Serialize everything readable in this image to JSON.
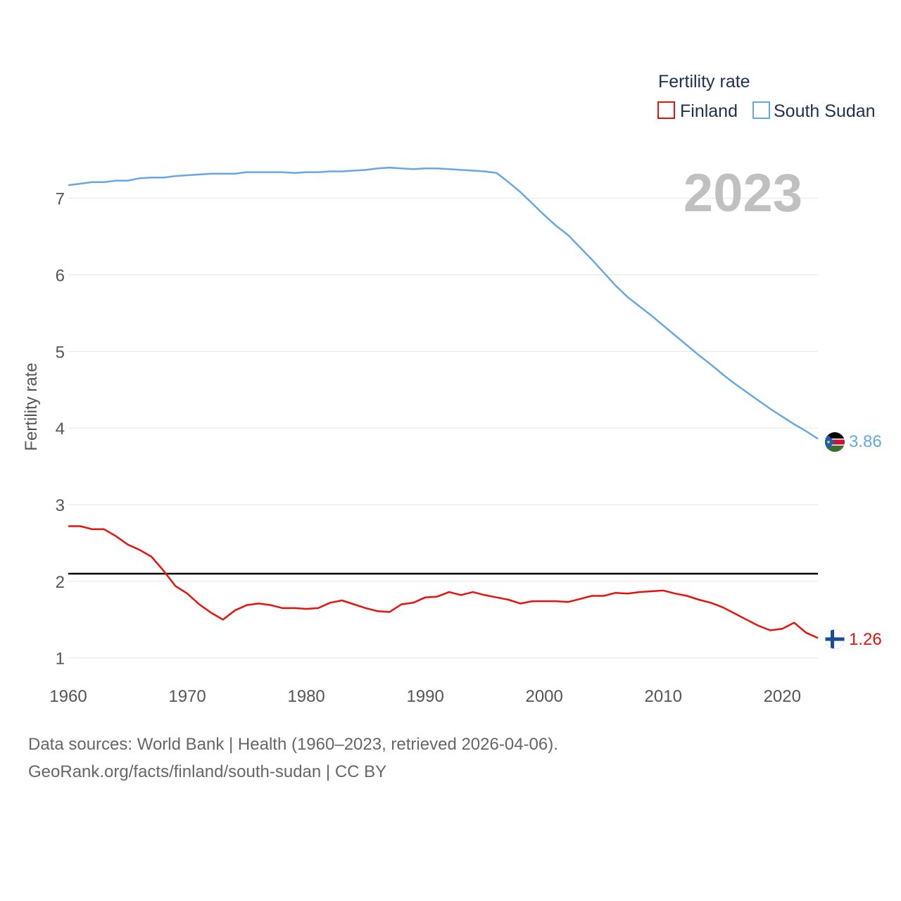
{
  "chart_data": {
    "type": "line",
    "title": "",
    "xlabel": "",
    "ylabel": "Fertility rate",
    "xlim": [
      1960,
      2023
    ],
    "ylim": [
      0.85,
      7.75
    ],
    "xticks": [
      1960,
      1970,
      1980,
      1990,
      2000,
      2010,
      2020
    ],
    "yticks": [
      1,
      2,
      3,
      4,
      5,
      6,
      7
    ],
    "reference_line": 2.1,
    "current_year": "2023",
    "legend": {
      "title": "Fertility rate",
      "position": "top-right"
    },
    "x": [
      1960,
      1961,
      1962,
      1963,
      1964,
      1965,
      1966,
      1967,
      1968,
      1969,
      1970,
      1971,
      1972,
      1973,
      1974,
      1975,
      1976,
      1977,
      1978,
      1979,
      1980,
      1981,
      1982,
      1983,
      1984,
      1985,
      1986,
      1987,
      1988,
      1989,
      1990,
      1991,
      1992,
      1993,
      1994,
      1995,
      1996,
      1997,
      1998,
      1999,
      2000,
      2001,
      2002,
      2003,
      2004,
      2005,
      2006,
      2007,
      2008,
      2009,
      2010,
      2011,
      2012,
      2013,
      2014,
      2015,
      2016,
      2017,
      2018,
      2019,
      2020,
      2021,
      2022,
      2023
    ],
    "series": [
      {
        "name": "Finland",
        "color": "#e8120c",
        "end_label": "1.26",
        "flag": "finland-flag-icon",
        "values": [
          2.72,
          2.72,
          2.68,
          2.68,
          2.59,
          2.48,
          2.41,
          2.32,
          2.14,
          1.94,
          1.84,
          1.7,
          1.59,
          1.5,
          1.62,
          1.69,
          1.71,
          1.69,
          1.65,
          1.65,
          1.64,
          1.65,
          1.72,
          1.75,
          1.7,
          1.65,
          1.61,
          1.6,
          1.7,
          1.72,
          1.79,
          1.8,
          1.86,
          1.82,
          1.86,
          1.82,
          1.79,
          1.76,
          1.71,
          1.74,
          1.74,
          1.74,
          1.73,
          1.77,
          1.81,
          1.81,
          1.85,
          1.84,
          1.86,
          1.87,
          1.88,
          1.84,
          1.81,
          1.76,
          1.72,
          1.66,
          1.58,
          1.5,
          1.42,
          1.36,
          1.38,
          1.46,
          1.33,
          1.26
        ]
      },
      {
        "name": "South Sudan",
        "color": "#65a8e6",
        "end_label": "3.86",
        "flag": "south-sudan-flag-icon",
        "values": [
          7.17,
          7.19,
          7.21,
          7.21,
          7.23,
          7.23,
          7.26,
          7.27,
          7.27,
          7.29,
          7.3,
          7.31,
          7.32,
          7.32,
          7.32,
          7.34,
          7.34,
          7.34,
          7.34,
          7.33,
          7.34,
          7.34,
          7.35,
          7.35,
          7.36,
          7.37,
          7.39,
          7.4,
          7.39,
          7.38,
          7.39,
          7.39,
          7.38,
          7.37,
          7.36,
          7.35,
          7.33,
          7.21,
          7.08,
          6.93,
          6.78,
          6.64,
          6.52,
          6.36,
          6.2,
          6.03,
          5.86,
          5.71,
          5.59,
          5.47,
          5.34,
          5.21,
          5.08,
          4.95,
          4.83,
          4.7,
          4.58,
          4.47,
          4.36,
          4.25,
          4.15,
          4.05,
          3.96,
          3.86
        ]
      }
    ]
  },
  "footer": {
    "source": "Data sources: World Bank | Health (1960–2023, retrieved 2026-04-06).",
    "link": "GeoRank.org/facts/finland/south-sudan | CC BY"
  }
}
